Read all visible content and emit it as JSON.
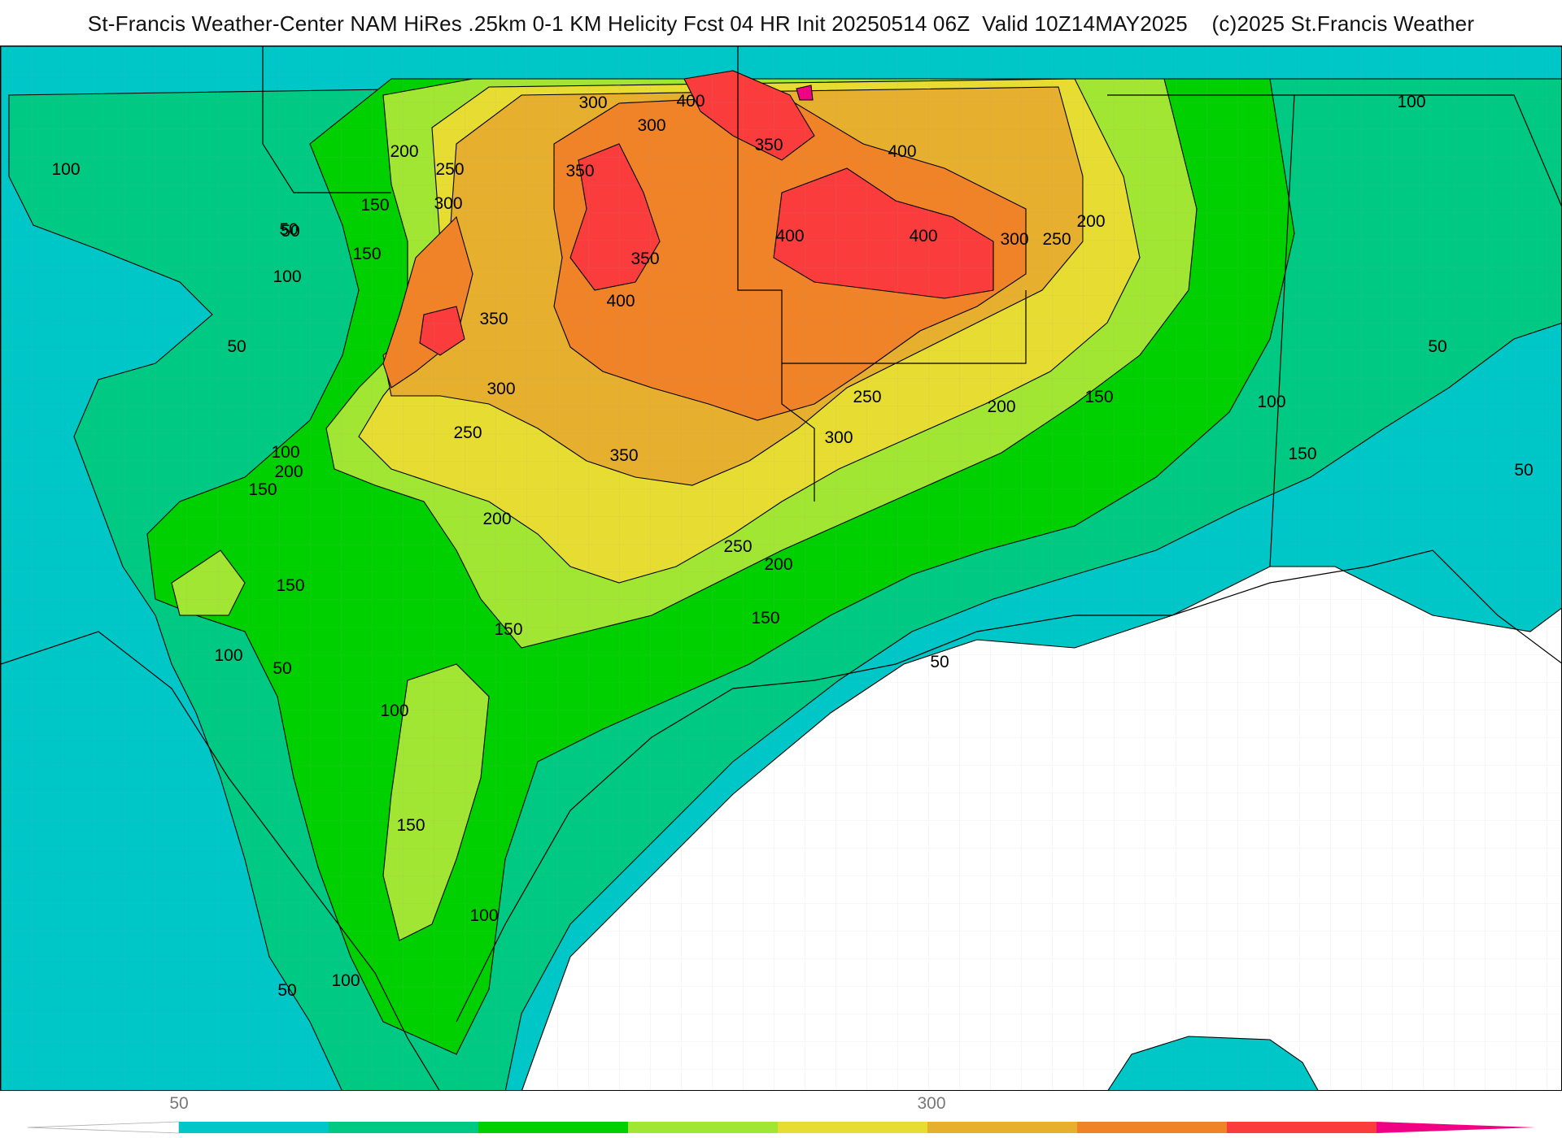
{
  "title": "St-Francis Weather-Center NAM HiRes .25km 0-1 KM Helicity Fcst 04 HR Init 20250514 06Z  Valid 10Z14MAY2025    (c)2025 St.Francis Weather",
  "map": {
    "variable": "0-1 KM Helicity",
    "contour_interval": 50,
    "contour_labels": [
      "50",
      "100",
      "150",
      "200",
      "250",
      "300",
      "350",
      "400"
    ],
    "levels": [
      {
        "min": 50,
        "color": "#00c7c7"
      },
      {
        "min": 100,
        "color": "#00c983"
      },
      {
        "min": 150,
        "color": "#00d000"
      },
      {
        "min": 200,
        "color": "#a0e632"
      },
      {
        "min": 250,
        "color": "#e6dc32"
      },
      {
        "min": 300,
        "color": "#e6af2d"
      },
      {
        "min": 350,
        "color": "#f08228"
      },
      {
        "min": 400,
        "color": "#fa3c3c"
      },
      {
        "min": 450,
        "color": "#f00082"
      }
    ],
    "label_points": [
      {
        "v": "400"
      },
      {
        "v": "300"
      },
      {
        "v": "300"
      },
      {
        "v": "350"
      },
      {
        "v": "200"
      },
      {
        "v": "250"
      },
      {
        "v": "150"
      },
      {
        "v": "300"
      },
      {
        "v": "50"
      },
      {
        "v": "150"
      },
      {
        "v": "100"
      },
      {
        "v": "350"
      },
      {
        "v": "400"
      },
      {
        "v": "400"
      },
      {
        "v": "400"
      },
      {
        "v": "350"
      },
      {
        "v": "400"
      },
      {
        "v": "300"
      },
      {
        "v": "250"
      },
      {
        "v": "200"
      },
      {
        "v": "50"
      },
      {
        "v": "100"
      },
      {
        "v": "350"
      },
      {
        "v": "300"
      },
      {
        "v": "250"
      },
      {
        "v": "350"
      },
      {
        "v": "300"
      },
      {
        "v": "250"
      },
      {
        "v": "200"
      },
      {
        "v": "150"
      },
      {
        "v": "100"
      },
      {
        "v": "200"
      },
      {
        "v": "150"
      },
      {
        "v": "200"
      },
      {
        "v": "250"
      },
      {
        "v": "200"
      },
      {
        "v": "150"
      },
      {
        "v": "150"
      },
      {
        "v": "100"
      },
      {
        "v": "50"
      },
      {
        "v": "50"
      },
      {
        "v": "150"
      },
      {
        "v": "100"
      },
      {
        "v": "50"
      },
      {
        "v": "100"
      },
      {
        "v": "100"
      },
      {
        "v": "50"
      },
      {
        "v": "150"
      },
      {
        "v": "150"
      },
      {
        "v": "100"
      },
      {
        "v": "50"
      },
      {
        "v": "100"
      },
      {
        "v": "50"
      }
    ]
  },
  "colorbar": {
    "tick_labels": [
      {
        "label": "50"
      },
      {
        "label": "300"
      }
    ],
    "colors": [
      "#00c7c7",
      "#00c983",
      "#00d000",
      "#a0e632",
      "#e6dc32",
      "#e6af2d",
      "#f08228",
      "#fa3c3c",
      "#f00082"
    ]
  }
}
